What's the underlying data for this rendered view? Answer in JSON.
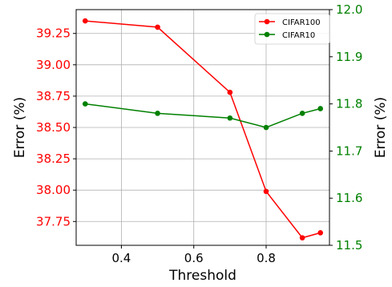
{
  "chart_data": {
    "type": "line",
    "xlabel": "Threshold",
    "x": [
      0.3,
      0.5,
      0.7,
      0.8,
      0.9,
      0.95
    ],
    "xlim": [
      0.275,
      0.975
    ],
    "xticks": [
      0.4,
      0.6,
      0.8
    ],
    "xtick_labels": [
      "0.4",
      "0.6",
      "0.8"
    ],
    "grid": true,
    "legend_position": "top-right",
    "axes": {
      "left": {
        "label": "Error (%)",
        "color": "#ff0000",
        "ylim": [
          37.56,
          39.44
        ],
        "ticks": [
          37.75,
          38.0,
          38.25,
          38.5,
          38.75,
          39.0,
          39.25
        ],
        "tick_labels": [
          "37.75",
          "38.00",
          "38.25",
          "38.50",
          "38.75",
          "39.00",
          "39.25"
        ]
      },
      "right": {
        "label": "Error (%)",
        "color": "#008000",
        "ylim": [
          11.5,
          12.0
        ],
        "ticks": [
          11.5,
          11.6,
          11.7,
          11.8,
          11.9,
          12.0
        ],
        "tick_labels": [
          "11.5",
          "11.6",
          "11.7",
          "11.8",
          "11.9",
          "12.0"
        ]
      }
    },
    "series": [
      {
        "name": "CIFAR100",
        "axis": "left",
        "color": "#ff0000",
        "values": [
          39.35,
          39.3,
          38.78,
          37.99,
          37.62,
          37.66
        ]
      },
      {
        "name": "CIFAR10",
        "axis": "right",
        "color": "#008000",
        "values": [
          11.8,
          11.78,
          11.77,
          11.75,
          11.78,
          11.79
        ]
      }
    ]
  }
}
